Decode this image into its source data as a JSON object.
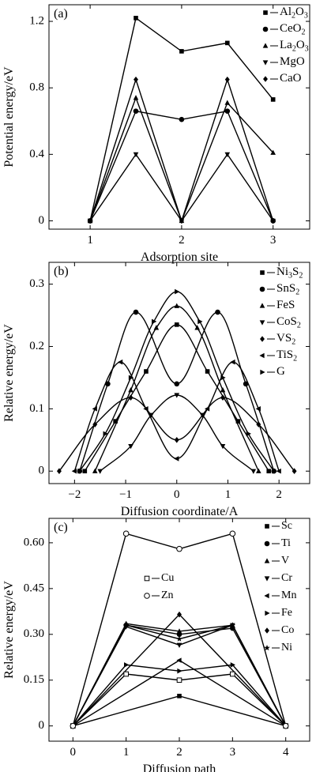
{
  "chart_data": [
    {
      "panel": "(a)",
      "type": "line",
      "xlabel": "Adsorption site",
      "ylabel": "Potential energy/eV",
      "xlim": [
        0.55,
        3.4
      ],
      "ylim": [
        -0.05,
        1.3
      ],
      "xticks": [
        1,
        2,
        3
      ],
      "xtick_labels": [
        "1",
        "2",
        "3"
      ],
      "yticks": [
        0,
        0.4,
        0.8,
        1.2
      ],
      "ytick_labels": [
        "0",
        "0.4",
        "0.8",
        "1.2"
      ],
      "legend_position": "top-right",
      "series": [
        {
          "name": "Al2O3",
          "legend": {
            "main": "Al",
            "sub1": "2",
            "mid": "O",
            "sub2": "3"
          },
          "marker": "square",
          "x": [
            1,
            1.5,
            2,
            2.5,
            3
          ],
          "y": [
            0,
            1.22,
            1.02,
            1.07,
            0.73
          ]
        },
        {
          "name": "CeO2",
          "legend": {
            "main": "CeO",
            "sub1": "2",
            "mid": "",
            "sub2": ""
          },
          "marker": "circle",
          "x": [
            1,
            1.5,
            2,
            2.5,
            3
          ],
          "y": [
            0,
            0.66,
            0.61,
            0.66,
            0
          ]
        },
        {
          "name": "La2O3",
          "legend": {
            "main": "La",
            "sub1": "2",
            "mid": "O",
            "sub2": "3"
          },
          "marker": "triangle-up",
          "x": [
            1,
            1.5,
            2,
            2.5,
            3
          ],
          "y": [
            0,
            0.74,
            0,
            0.71,
            0.41
          ]
        },
        {
          "name": "MgO",
          "legend": {
            "main": "MgO",
            "sub1": "",
            "mid": "",
            "sub2": ""
          },
          "marker": "triangle-down",
          "x": [
            1,
            1.5,
            2,
            2.5,
            3
          ],
          "y": [
            0,
            0.4,
            0,
            0.4,
            0
          ]
        },
        {
          "name": "CaO",
          "legend": {
            "main": "CaO",
            "sub1": "",
            "mid": "",
            "sub2": ""
          },
          "marker": "diamond",
          "x": [
            1,
            1.5,
            2,
            2.5,
            3
          ],
          "y": [
            0,
            0.85,
            0,
            0.85,
            0
          ]
        }
      ]
    },
    {
      "panel": "(b)",
      "type": "line",
      "xlabel": "Diffusion coordinate/A",
      "ylabel": "Relative energy/eV",
      "xlim": [
        -2.5,
        2.6
      ],
      "ylim": [
        -0.02,
        0.335
      ],
      "xticks": [
        -2,
        -1,
        0,
        1,
        2
      ],
      "xtick_labels": [
        "−2",
        "−1",
        "0",
        "1",
        "2"
      ],
      "yticks": [
        0,
        0.1,
        0.2,
        0.3
      ],
      "ytick_labels": [
        "0",
        "0.1",
        "0.2",
        "0.3"
      ],
      "legend_position": "top-right",
      "series": [
        {
          "name": "Ni3S2",
          "legend": {
            "main": "Ni",
            "sub1": "3",
            "mid": "S",
            "sub2": "2"
          },
          "marker": "square",
          "x": [
            -1.8,
            -1.2,
            -0.6,
            0,
            0.6,
            1.2,
            1.8
          ],
          "y": [
            0,
            0.08,
            0.16,
            0.235,
            0.16,
            0.08,
            0
          ]
        },
        {
          "name": "SnS2",
          "legend": {
            "main": "SnS",
            "sub1": "2",
            "mid": "",
            "sub2": ""
          },
          "marker": "circle",
          "x": [
            -1.9,
            -1.35,
            -0.8,
            0,
            0.8,
            1.35,
            1.9
          ],
          "y": [
            0,
            0.14,
            0.255,
            0.14,
            0.255,
            0.14,
            0
          ]
        },
        {
          "name": "FeS",
          "legend": {
            "main": "FeS",
            "sub1": "",
            "mid": "",
            "sub2": ""
          },
          "marker": "triangle-up",
          "x": [
            -1.6,
            -0.9,
            -0.4,
            0,
            0.4,
            0.9,
            1.6
          ],
          "y": [
            0,
            0.13,
            0.23,
            0.265,
            0.23,
            0.13,
            0
          ]
        },
        {
          "name": "CoS2",
          "legend": {
            "main": "CoS",
            "sub1": "2",
            "mid": "",
            "sub2": ""
          },
          "marker": "triangle-down",
          "x": [
            -1.5,
            -0.9,
            -0.5,
            0,
            0.5,
            0.9,
            1.5
          ],
          "y": [
            0,
            0.04,
            0.09,
            0.122,
            0.09,
            0.04,
            0
          ]
        },
        {
          "name": "VS2",
          "legend": {
            "main": "VS",
            "sub1": "2",
            "mid": "",
            "sub2": ""
          },
          "marker": "diamond",
          "x": [
            -2.3,
            -1.6,
            -0.9,
            0,
            0.9,
            1.6,
            2.3
          ],
          "y": [
            0,
            0.075,
            0.118,
            0.05,
            0.118,
            0.075,
            0
          ]
        },
        {
          "name": "TiS2",
          "legend": {
            "main": "TiS",
            "sub1": "2",
            "mid": "",
            "sub2": ""
          },
          "marker": "triangle-left",
          "x": [
            -2.0,
            -1.6,
            -1.1,
            -0.6,
            0,
            0.6,
            1.1,
            1.6,
            2.0
          ],
          "y": [
            0,
            0.1,
            0.175,
            0.1,
            0.02,
            0.1,
            0.175,
            0.1,
            0
          ]
        },
        {
          "name": "G",
          "legend": {
            "main": "G",
            "sub1": "",
            "mid": "",
            "sub2": ""
          },
          "marker": "triangle-right",
          "x": [
            -1.9,
            -1.4,
            -0.9,
            -0.45,
            0,
            0.45,
            0.9,
            1.4,
            1.9
          ],
          "y": [
            0,
            0.06,
            0.15,
            0.24,
            0.288,
            0.24,
            0.15,
            0.06,
            0
          ]
        }
      ]
    },
    {
      "panel": "(c)",
      "type": "line",
      "xlabel": "Diffusion path",
      "ylabel": "Relative energy/eV",
      "xlim": [
        -0.45,
        4.45
      ],
      "ylim": [
        -0.05,
        0.68
      ],
      "xticks": [
        0,
        1,
        2,
        3,
        4
      ],
      "xtick_labels": [
        "0",
        "1",
        "2",
        "3",
        "4"
      ],
      "yticks": [
        0,
        0.15,
        0.3,
        0.45,
        0.6
      ],
      "ytick_labels": [
        "0",
        "0.15",
        "0.30",
        "0.45",
        "0.60"
      ],
      "legend_position": "top-right",
      "series": [
        {
          "name": "Sc",
          "legend": {
            "main": "Sc",
            "sub1": "",
            "mid": "",
            "sub2": ""
          },
          "marker": "square",
          "x": [
            0,
            2,
            4
          ],
          "y": [
            0,
            0.098,
            0
          ]
        },
        {
          "name": "Ti",
          "legend": {
            "main": "Ti",
            "sub1": "",
            "mid": "",
            "sub2": ""
          },
          "marker": "circle",
          "x": [
            0,
            1,
            2,
            3,
            4
          ],
          "y": [
            0,
            0.33,
            0.3,
            0.32,
            0
          ]
        },
        {
          "name": "V",
          "legend": {
            "main": "V",
            "sub1": "",
            "mid": "",
            "sub2": ""
          },
          "marker": "triangle-up",
          "x": [
            0,
            1,
            2,
            3,
            4
          ],
          "y": [
            0,
            0.335,
            0.31,
            0.33,
            0
          ]
        },
        {
          "name": "Cr",
          "legend": {
            "main": "Cr",
            "sub1": "",
            "mid": "",
            "sub2": ""
          },
          "marker": "triangle-down",
          "x": [
            0,
            1,
            2,
            3,
            4
          ],
          "y": [
            0,
            0.325,
            0.265,
            0.33,
            0
          ]
        },
        {
          "name": "Mn",
          "legend": {
            "main": "Mn",
            "sub1": "",
            "mid": "",
            "sub2": ""
          },
          "marker": "triangle-left",
          "x": [
            0,
            2,
            4
          ],
          "y": [
            0,
            0.215,
            0
          ]
        },
        {
          "name": "Fe",
          "legend": {
            "main": "Fe",
            "sub1": "",
            "mid": "",
            "sub2": ""
          },
          "marker": "triangle-right",
          "x": [
            0,
            1,
            2,
            3,
            4
          ],
          "y": [
            0,
            0.2,
            0.18,
            0.2,
            0
          ]
        },
        {
          "name": "Co",
          "legend": {
            "main": "Co",
            "sub1": "",
            "mid": "",
            "sub2": ""
          },
          "marker": "diamond",
          "x": [
            0,
            2,
            4
          ],
          "y": [
            0,
            0.365,
            0
          ]
        },
        {
          "name": "Ni",
          "legend": {
            "main": "Ni",
            "sub1": "",
            "mid": "",
            "sub2": ""
          },
          "marker": "star",
          "x": [
            0,
            1,
            2,
            3,
            4
          ],
          "y": [
            0,
            0.33,
            0.285,
            0.33,
            0
          ]
        },
        {
          "name": "Cu",
          "legend": {
            "main": "Cu",
            "sub1": "",
            "mid": "",
            "sub2": ""
          },
          "marker": "square-open",
          "x": [
            0,
            1,
            2,
            3,
            4
          ],
          "y": [
            0,
            0.17,
            0.15,
            0.17,
            0
          ]
        },
        {
          "name": "Zn",
          "legend": {
            "main": "Zn",
            "sub1": "",
            "mid": "",
            "sub2": ""
          },
          "marker": "circle-open",
          "x": [
            0,
            1,
            2,
            3,
            4
          ],
          "y": [
            0,
            0.63,
            0.58,
            0.63,
            0
          ]
        }
      ]
    }
  ]
}
